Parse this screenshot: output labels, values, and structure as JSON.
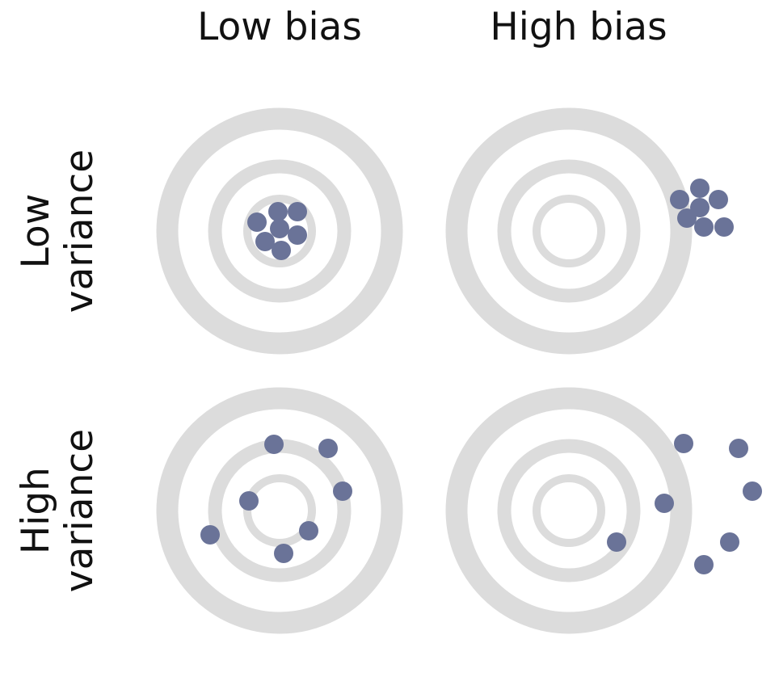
{
  "columns": [
    "Low bias",
    "High bias"
  ],
  "rows": [
    {
      "line1": "Low",
      "line2": "variance"
    },
    {
      "line1": "High",
      "line2": "variance"
    }
  ],
  "colors": {
    "ring": "#dcdcdc",
    "dot": "#6a7398",
    "text": "#111111",
    "background": "#ffffff"
  }
}
